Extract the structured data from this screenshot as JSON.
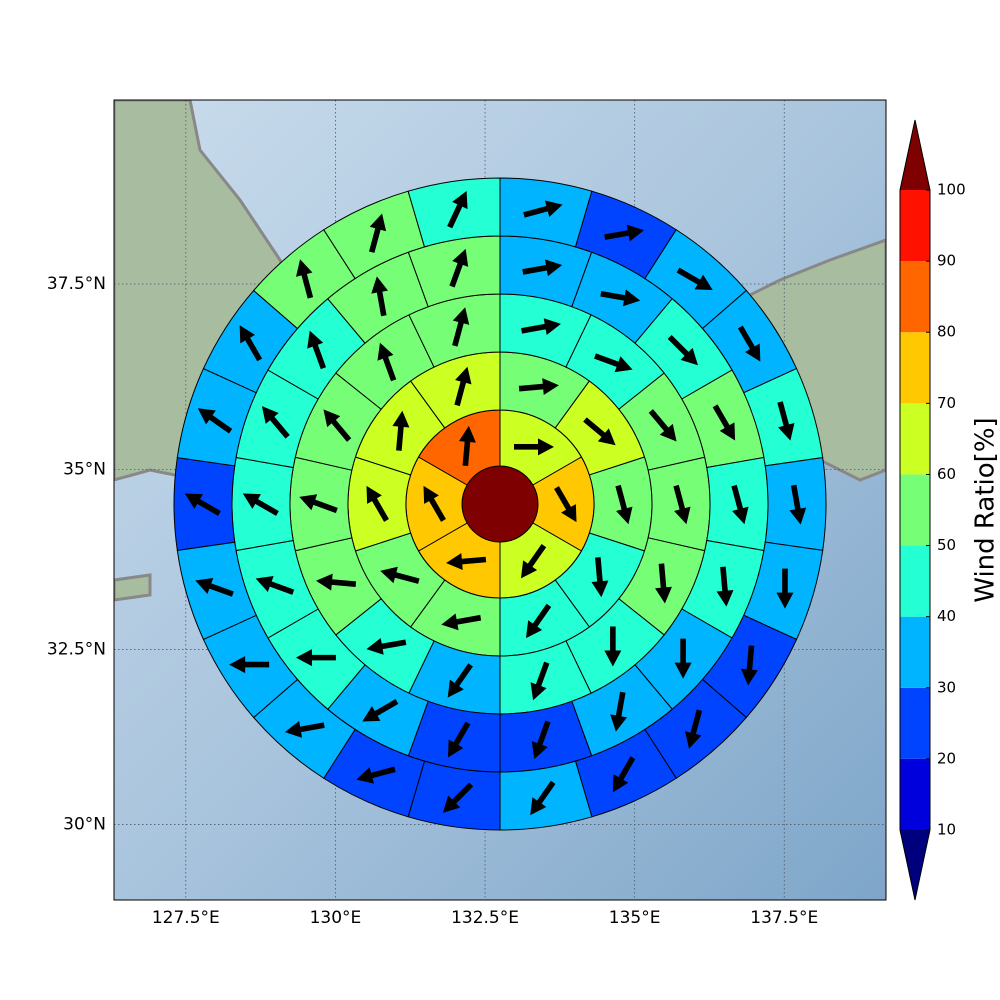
{
  "chart_data": {
    "type": "windrose",
    "projection": "mercator",
    "xlim": [
      126.3,
      139.2
    ],
    "ylim": [
      28.9,
      39.9
    ],
    "xticks": [
      {
        "value": 127.5,
        "label": "127.5°E"
      },
      {
        "value": 130,
        "label": "130°E"
      },
      {
        "value": 132.5,
        "label": "132.5°E"
      },
      {
        "value": 135,
        "label": "135°E"
      },
      {
        "value": 137.5,
        "label": "137.5°E"
      }
    ],
    "yticks": [
      {
        "value": 30,
        "label": "30°N"
      },
      {
        "value": 32.5,
        "label": "32.5°N"
      },
      {
        "value": 35,
        "label": "35°N"
      },
      {
        "value": 37.5,
        "label": "37.5°N"
      }
    ],
    "grid": true,
    "center_value": 102,
    "rings": [
      {
        "values": [
          65,
          75,
          68,
          75,
          75,
          85
        ],
        "directions": [
          90,
          150,
          215,
          265,
          330,
          5
        ]
      },
      {
        "values": [
          55,
          65,
          55,
          45,
          45,
          50,
          55,
          65,
          65,
          65
        ],
        "directions": [
          85,
          130,
          165,
          175,
          215,
          260,
          285,
          330,
          5,
          15
        ]
      },
      {
        "values": [
          45,
          45,
          55,
          55,
          55,
          45,
          45,
          35,
          45,
          55,
          55,
          50,
          55,
          55
        ],
        "directions": [
          80,
          110,
          140,
          165,
          175,
          180,
          200,
          215,
          260,
          275,
          290,
          320,
          340,
          15
        ]
      },
      {
        "values": [
          35,
          35,
          45,
          55,
          45,
          45,
          35,
          35,
          25,
          25,
          35,
          45,
          45,
          45,
          45,
          45,
          55,
          55
        ],
        "directions": [
          80,
          100,
          135,
          150,
          165,
          175,
          180,
          190,
          200,
          210,
          240,
          270,
          290,
          300,
          320,
          340,
          350,
          20
        ]
      },
      {
        "values": [
          35,
          25,
          35,
          35,
          45,
          35,
          35,
          25,
          25,
          25,
          35,
          25,
          25,
          35,
          35,
          35,
          25,
          35,
          35,
          55,
          55,
          45
        ],
        "directions": [
          75,
          80,
          120,
          150,
          165,
          170,
          180,
          185,
          195,
          210,
          215,
          225,
          255,
          260,
          270,
          290,
          300,
          305,
          330,
          345,
          15,
          25
        ]
      }
    ],
    "colorbar": {
      "label": "Wind Ratio[%]",
      "ticks": [
        10,
        20,
        30,
        40,
        50,
        60,
        70,
        80,
        90,
        100
      ],
      "colors": [
        "#0000dd",
        "#0044ff",
        "#00b4ff",
        "#24ffd4",
        "#76ff76",
        "#ccff22",
        "#ffc800",
        "#ff6600",
        "#ff1100"
      ],
      "under_color": "#00007f",
      "over_color": "#7f0000"
    }
  }
}
